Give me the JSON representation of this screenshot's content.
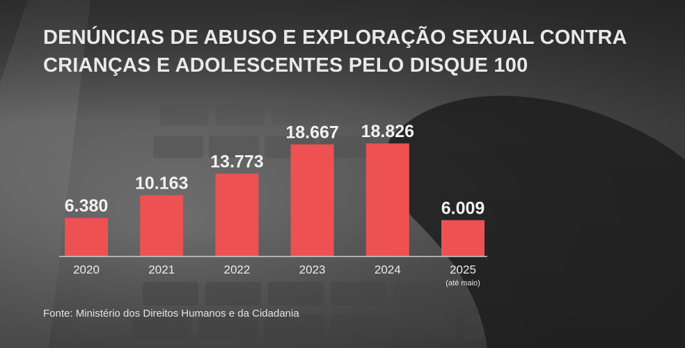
{
  "title_lines": [
    "DENÚNCIAS DE ABUSO E EXPLORAÇÃO SEXUAL CONTRA",
    "CRIANÇAS E ADOLESCENTES PELO DISQUE 100"
  ],
  "source": "Fonte: Ministério dos Direitos Humanos e da Cidadania",
  "colors": {
    "bar": "#ee5152",
    "axis": "#cfcfcf",
    "text": "#f2f2f2"
  },
  "chart_data": {
    "type": "bar",
    "title": "DENÚNCIAS DE ABUSO E EXPLORAÇÃO SEXUAL CONTRA CRIANÇAS E ADOLESCENTES PELO DISQUE 100",
    "categories": [
      "2020",
      "2021",
      "2022",
      "2023",
      "2024",
      "2025"
    ],
    "category_notes": [
      "",
      "",
      "",
      "",
      "",
      "(até maio)"
    ],
    "values": [
      6380,
      10163,
      13773,
      18667,
      18826,
      6009
    ],
    "value_labels": [
      "6.380",
      "10.163",
      "13.773",
      "18.667",
      "18.826",
      "6.009"
    ],
    "xlabel": "",
    "ylabel": "",
    "ylim": [
      0,
      20000
    ],
    "grid": false,
    "legend": "none"
  }
}
